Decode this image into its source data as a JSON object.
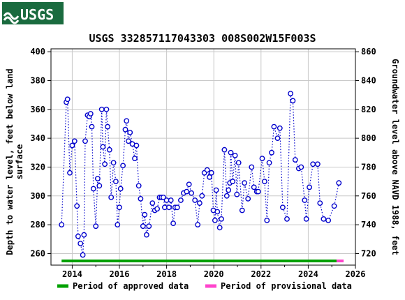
{
  "logo": {
    "text": "USGS",
    "color": "#1a6b3f"
  },
  "chart_data": {
    "type": "scatter",
    "title": "USGS 332857117043303 008S002W15F003S",
    "ylabel_left_line1": "Depth to water level, feet below land",
    "ylabel_left_line2": "surface",
    "ylabel_right": "Groundwater level above NAVD 1988, feet",
    "xlim": [
      2013.1,
      2026.0
    ],
    "ylim_depth": [
      402,
      252
    ],
    "ylim_elevation": [
      712,
      862
    ],
    "x_ticks": [
      2014,
      2016,
      2018,
      2020,
      2022,
      2024,
      2026
    ],
    "x_tick_labels": [
      "2014",
      "2016",
      "2018",
      "2020",
      "2022",
      "2024",
      "2026"
    ],
    "y_ticks_left": [
      260,
      280,
      300,
      320,
      340,
      360,
      380,
      400
    ],
    "y_tick_labels_left": [
      "260",
      "280",
      "300",
      "320",
      "340",
      "360",
      "380",
      "400"
    ],
    "y_ticks_right": [
      720,
      740,
      760,
      780,
      800,
      820,
      840,
      860
    ],
    "y_tick_labels_right": [
      "720",
      "740",
      "760",
      "780",
      "800",
      "820",
      "840",
      "860"
    ],
    "grid": true,
    "series": [
      {
        "marker": "circle",
        "color": "#0000cc",
        "points": [
          [
            2013.55,
            280
          ],
          [
            2013.75,
            365
          ],
          [
            2013.8,
            367
          ],
          [
            2013.9,
            316
          ],
          [
            2014.0,
            335
          ],
          [
            2014.1,
            338
          ],
          [
            2014.2,
            293
          ],
          [
            2014.25,
            272
          ],
          [
            2014.35,
            267
          ],
          [
            2014.45,
            259
          ],
          [
            2014.5,
            273
          ],
          [
            2014.55,
            338
          ],
          [
            2014.65,
            356
          ],
          [
            2014.72,
            355
          ],
          [
            2014.78,
            357
          ],
          [
            2014.83,
            348
          ],
          [
            2014.9,
            305
          ],
          [
            2015.0,
            279
          ],
          [
            2015.08,
            312
          ],
          [
            2015.15,
            307
          ],
          [
            2015.25,
            360
          ],
          [
            2015.3,
            334
          ],
          [
            2015.38,
            322
          ],
          [
            2015.45,
            360
          ],
          [
            2015.5,
            348
          ],
          [
            2015.58,
            332
          ],
          [
            2015.65,
            299
          ],
          [
            2015.75,
            323
          ],
          [
            2015.85,
            310
          ],
          [
            2015.92,
            280
          ],
          [
            2016.0,
            292
          ],
          [
            2016.05,
            305
          ],
          [
            2016.15,
            321
          ],
          [
            2016.25,
            346
          ],
          [
            2016.3,
            352
          ],
          [
            2016.38,
            338
          ],
          [
            2016.45,
            344
          ],
          [
            2016.55,
            336
          ],
          [
            2016.65,
            326
          ],
          [
            2016.72,
            335
          ],
          [
            2016.82,
            307
          ],
          [
            2016.9,
            298
          ],
          [
            2017.0,
            279
          ],
          [
            2017.07,
            287
          ],
          [
            2017.15,
            273
          ],
          [
            2017.25,
            279
          ],
          [
            2017.4,
            295
          ],
          [
            2017.5,
            290
          ],
          [
            2017.6,
            291
          ],
          [
            2017.7,
            299
          ],
          [
            2017.78,
            299
          ],
          [
            2017.86,
            299
          ],
          [
            2017.92,
            292
          ],
          [
            2018.0,
            297
          ],
          [
            2018.1,
            292
          ],
          [
            2018.18,
            297
          ],
          [
            2018.28,
            281
          ],
          [
            2018.36,
            292
          ],
          [
            2018.45,
            292
          ],
          [
            2018.6,
            297
          ],
          [
            2018.72,
            302
          ],
          [
            2018.85,
            303
          ],
          [
            2018.95,
            308
          ],
          [
            2019.05,
            302
          ],
          [
            2019.2,
            297
          ],
          [
            2019.32,
            280
          ],
          [
            2019.4,
            295
          ],
          [
            2019.5,
            300
          ],
          [
            2019.6,
            316
          ],
          [
            2019.72,
            318
          ],
          [
            2019.82,
            313
          ],
          [
            2019.9,
            316
          ],
          [
            2019.98,
            290
          ],
          [
            2020.05,
            283
          ],
          [
            2020.1,
            304
          ],
          [
            2020.15,
            289
          ],
          [
            2020.25,
            278
          ],
          [
            2020.32,
            284
          ],
          [
            2020.45,
            332
          ],
          [
            2020.55,
            300
          ],
          [
            2020.62,
            304
          ],
          [
            2020.68,
            309
          ],
          [
            2020.72,
            330
          ],
          [
            2020.8,
            310
          ],
          [
            2020.9,
            328
          ],
          [
            2020.98,
            301
          ],
          [
            2021.05,
            323
          ],
          [
            2021.2,
            290
          ],
          [
            2021.3,
            309
          ],
          [
            2021.45,
            298
          ],
          [
            2021.6,
            320
          ],
          [
            2021.7,
            306
          ],
          [
            2021.82,
            303
          ],
          [
            2021.88,
            303
          ],
          [
            2022.05,
            326
          ],
          [
            2022.15,
            310
          ],
          [
            2022.25,
            283
          ],
          [
            2022.35,
            323
          ],
          [
            2022.45,
            330
          ],
          [
            2022.55,
            348
          ],
          [
            2022.7,
            340
          ],
          [
            2022.8,
            347
          ],
          [
            2022.92,
            292
          ],
          [
            2023.1,
            284
          ],
          [
            2023.25,
            371
          ],
          [
            2023.35,
            366
          ],
          [
            2023.45,
            325
          ],
          [
            2023.6,
            319
          ],
          [
            2023.7,
            320
          ],
          [
            2023.85,
            297
          ],
          [
            2023.92,
            284
          ],
          [
            2024.05,
            306
          ],
          [
            2024.2,
            322
          ],
          [
            2024.4,
            322
          ],
          [
            2024.5,
            295
          ],
          [
            2024.65,
            284
          ],
          [
            2024.85,
            283
          ],
          [
            2025.1,
            293
          ],
          [
            2025.3,
            309
          ]
        ]
      }
    ],
    "bars": [
      {
        "name": "Period of approved data",
        "color": "#00a000",
        "x_start": 2013.55,
        "x_end": 2025.2
      },
      {
        "name": "Period of provisional data",
        "color": "#ff44cc",
        "x_start": 2025.2,
        "x_end": 2025.5
      }
    ],
    "legend": {
      "placement": "bottom"
    }
  }
}
